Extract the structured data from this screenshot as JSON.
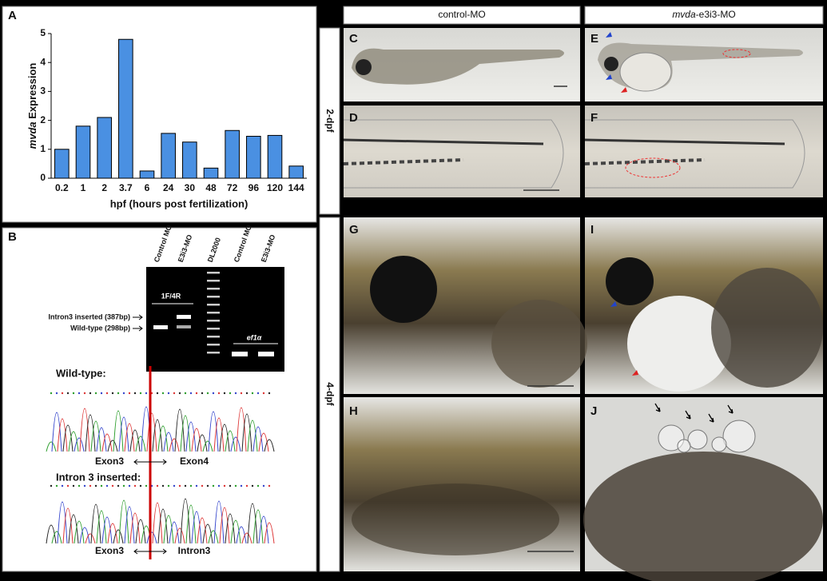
{
  "panel_labels": [
    "A",
    "B",
    "C",
    "D",
    "E",
    "F",
    "G",
    "H",
    "I",
    "J"
  ],
  "chart_data": {
    "type": "bar",
    "y_label": {
      "gene": "mvda",
      "suffix": " Expression"
    },
    "x_label": "hpf (hours post fertilization)",
    "categories": [
      "0.2",
      "1",
      "2",
      "3.7",
      "6",
      "24",
      "30",
      "48",
      "72",
      "96",
      "120",
      "144"
    ],
    "values": [
      1.0,
      1.8,
      2.1,
      4.8,
      0.25,
      1.55,
      1.25,
      0.35,
      1.65,
      1.45,
      1.48,
      0.42
    ],
    "color": "#4a90e2",
    "ylim": [
      0,
      5
    ],
    "yticks": [
      0,
      1,
      2,
      3,
      4,
      5
    ]
  },
  "gel": {
    "lanes": [
      "Control MO",
      "E3i3-MO",
      "DL2000",
      "Control MO",
      "E3i3-MO"
    ],
    "primer_label": "1F/4R",
    "control_gene": "ef1α",
    "band_labels": [
      "Intron3 inserted (387bp)",
      "Wild-type (298bp)"
    ]
  },
  "chromatograms": [
    {
      "title": "Wild-type:",
      "left": "Exon3",
      "right": "Exon4"
    },
    {
      "title": "Intron 3 inserted:",
      "left": "Exon3",
      "right": "Intron3"
    }
  ],
  "columns": [
    {
      "label": "control-MO"
    },
    {
      "gene": "mvda",
      "suffix": "-e3i3-MO"
    }
  ],
  "rows": [
    "2-dpf",
    "4-dpf"
  ]
}
